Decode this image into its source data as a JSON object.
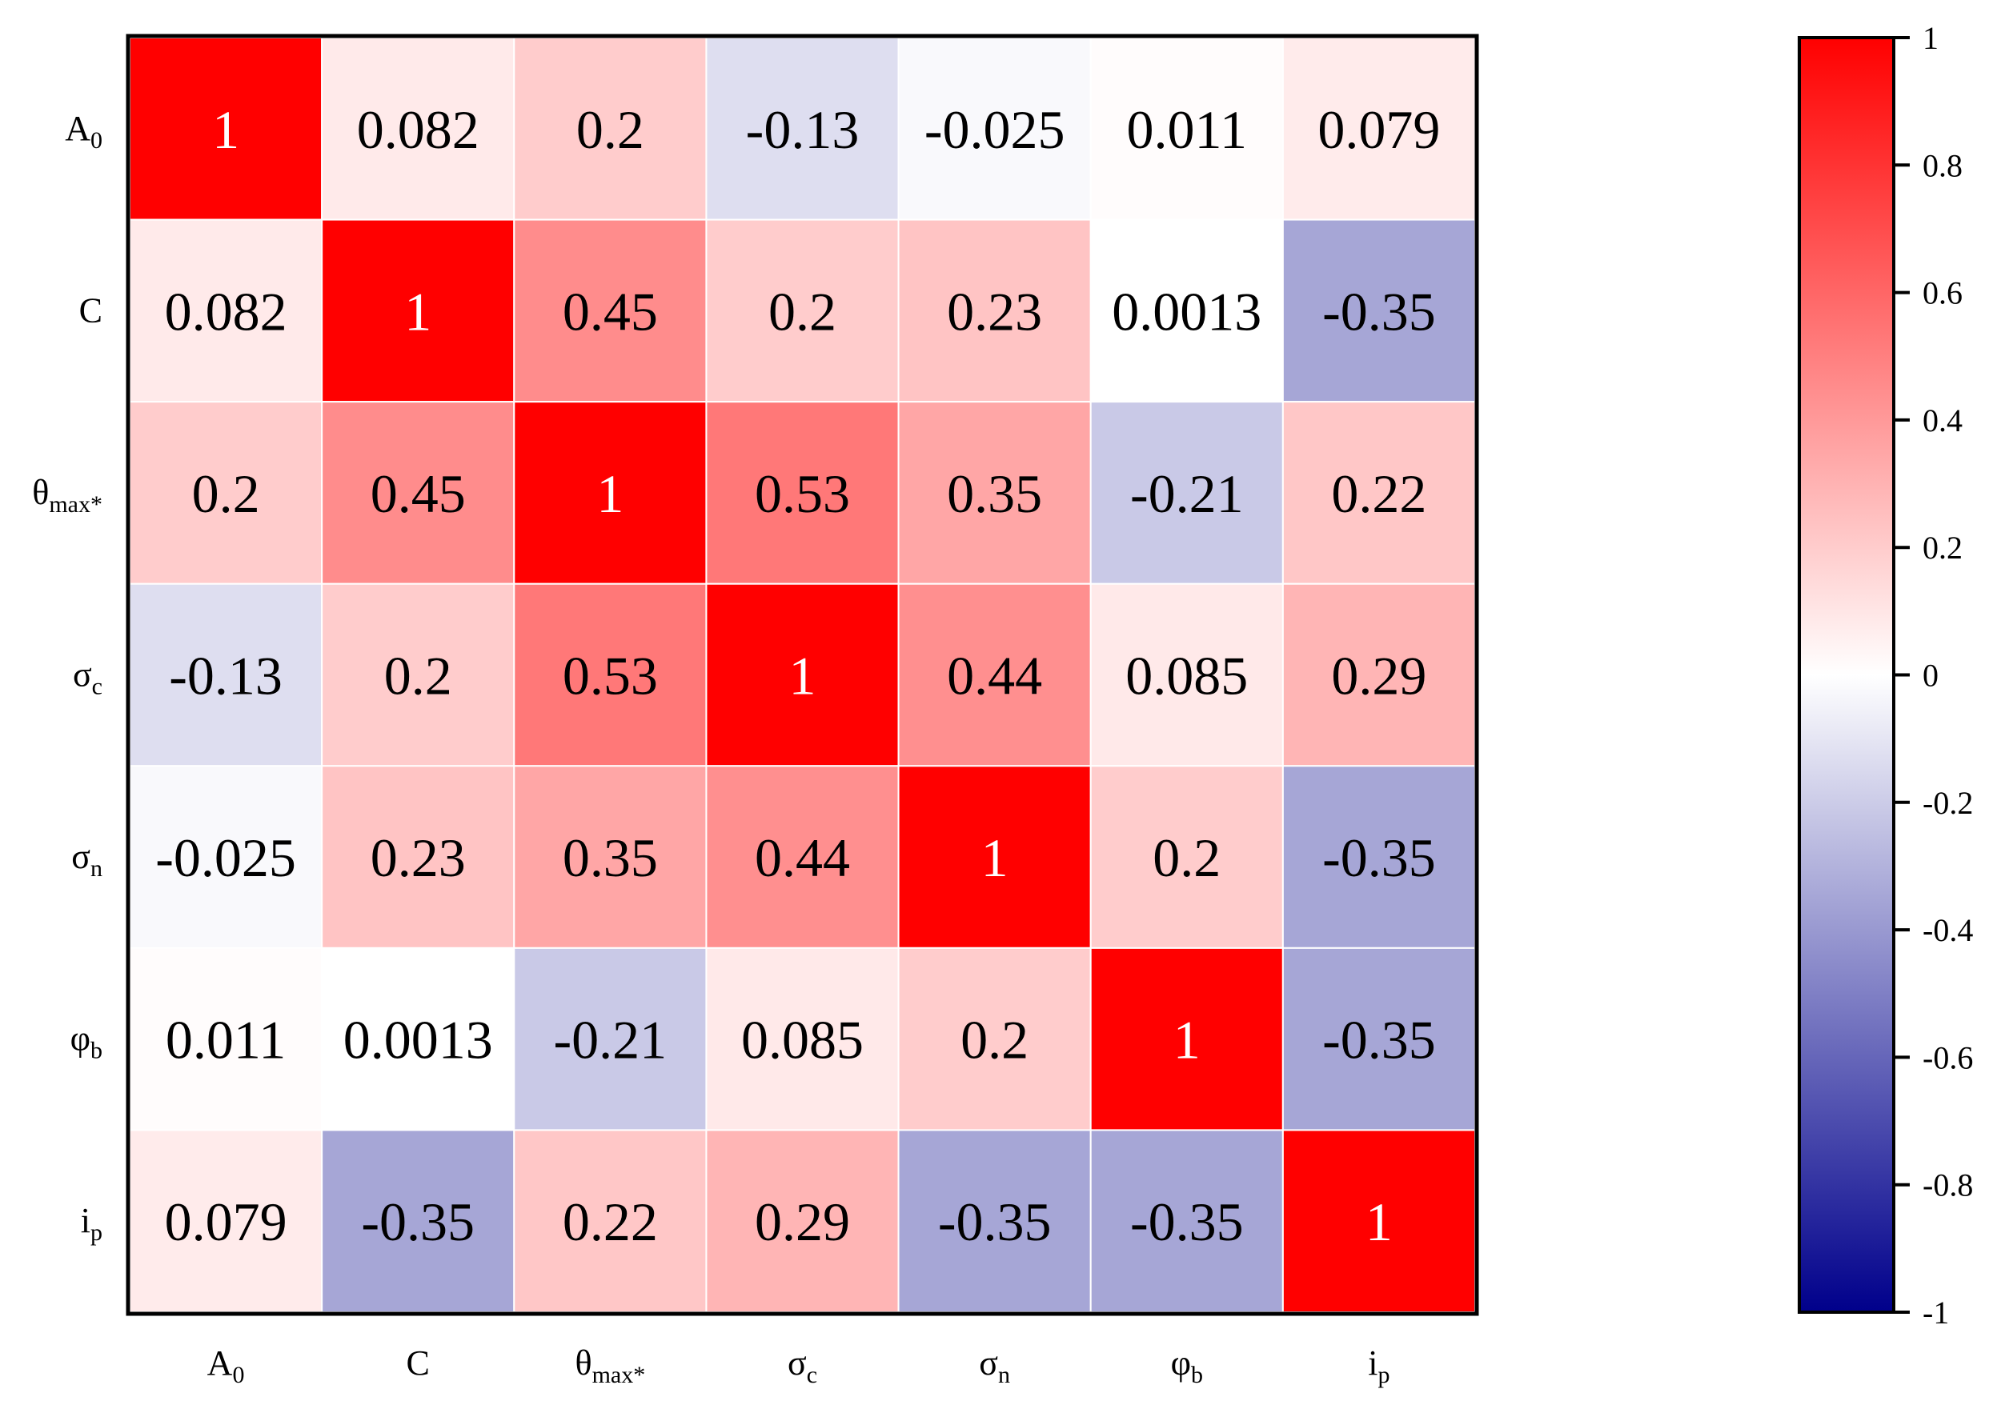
{
  "chart_data": {
    "type": "heatmap",
    "title": "",
    "xlabel": "",
    "ylabel": "",
    "variables": [
      {
        "base": "A",
        "sub": "0"
      },
      {
        "base": "C",
        "sub": ""
      },
      {
        "base": "θ",
        "sub": "max*"
      },
      {
        "base": "σ",
        "sub": "c"
      },
      {
        "base": "σ",
        "sub": "n"
      },
      {
        "base": "φ",
        "sub": "b"
      },
      {
        "base": "i",
        "sub": "p"
      }
    ],
    "matrix": [
      [
        1,
        0.082,
        0.2,
        -0.13,
        -0.025,
        0.011,
        0.079
      ],
      [
        0.082,
        1,
        0.45,
        0.2,
        0.23,
        0.0013,
        -0.35
      ],
      [
        0.2,
        0.45,
        1,
        0.53,
        0.35,
        -0.21,
        0.22
      ],
      [
        -0.13,
        0.2,
        0.53,
        1,
        0.44,
        0.085,
        0.29
      ],
      [
        -0.025,
        0.23,
        0.35,
        0.44,
        1,
        0.2,
        -0.35
      ],
      [
        0.011,
        0.0013,
        -0.21,
        0.085,
        0.2,
        1,
        -0.35
      ],
      [
        0.079,
        -0.35,
        0.22,
        0.29,
        -0.35,
        -0.35,
        1
      ]
    ],
    "colorbar": {
      "range": [
        -1,
        1
      ],
      "ticks": [
        1,
        0.8,
        0.6,
        0.4,
        0.2,
        0,
        -0.2,
        -0.4,
        -0.6,
        -0.8,
        -1
      ],
      "tick_labels": [
        "1",
        "0.8",
        "0.6",
        "0.4",
        "0.2",
        "0",
        "-0.2",
        "-0.4",
        "-0.6",
        "-0.8",
        "-1"
      ],
      "colors": {
        "high": "#ff0000",
        "mid": "#ffffff",
        "low": "#00008b"
      }
    }
  }
}
